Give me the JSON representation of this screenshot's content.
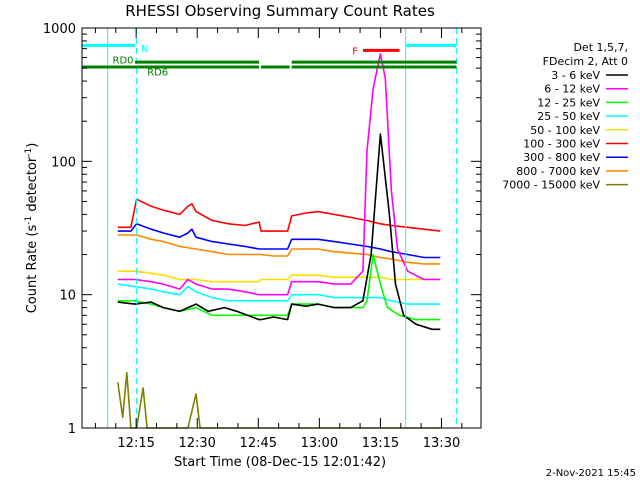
{
  "chart_data": {
    "type": "line",
    "title": "RHESSI Observing Summary Count Rates",
    "ylabel_main": "Count Rate (s",
    "ylabel_sup1": "-1",
    "ylabel_mid": " detector",
    "ylabel_sup2": "-1",
    "ylabel_end": ")",
    "xlabel": "Start Time (08-Dec-15 12:01:42)",
    "footer_date": "2-Nov-2021 15:45",
    "x_unit": "minutes since 12:01:42",
    "xlim": [
      0,
      98
    ],
    "ylim": [
      1,
      1000
    ],
    "yscale": "log",
    "x_ticks": [
      {
        "label": "12:15",
        "value": 13.3
      },
      {
        "label": "12:30",
        "value": 28.3
      },
      {
        "label": "12:45",
        "value": 43.3
      },
      {
        "label": "13:00",
        "value": 58.3
      },
      {
        "label": "13:15",
        "value": 73.3
      },
      {
        "label": "13:30",
        "value": 88.3
      }
    ],
    "y_ticks": [
      {
        "label": "1",
        "value": 1
      },
      {
        "label": "10",
        "value": 10
      },
      {
        "label": "100",
        "value": 100
      },
      {
        "label": "1000",
        "value": 1000
      }
    ],
    "legend": {
      "header": [
        "Det 1,5,7,",
        "FDecim 2, Att 0"
      ],
      "placement": "right"
    },
    "flags": [
      {
        "label": "N",
        "color": "#00ffff",
        "level": 740,
        "segments": [
          [
            0,
            13
          ],
          [
            79.5,
            92
          ]
        ]
      },
      {
        "label": "RD0",
        "color": "#008000",
        "level": 510,
        "segments": [
          [
            0,
            43.5
          ],
          [
            44,
            51
          ],
          [
            51.5,
            92
          ]
        ]
      },
      {
        "label": "RD6",
        "color": "#008000",
        "level": 555,
        "segments": [
          [
            13,
            43.5
          ],
          [
            51.5,
            92
          ]
        ]
      },
      {
        "label": "F",
        "color": "#ff0000",
        "level": 680,
        "segments": [
          [
            69,
            78
          ]
        ]
      }
    ],
    "label_vals": {
      "N": 710,
      "RD0": 580,
      "RD6": 470,
      "F": 680
    },
    "vlines": [
      {
        "x": 6.3,
        "style": "solid",
        "color": "#00ffff"
      },
      {
        "x": 13.4,
        "style": "dashed",
        "color": "#00ffff"
      },
      {
        "x": 79.5,
        "style": "solid",
        "color": "#00ffff"
      },
      {
        "x": 92.0,
        "style": "dashed",
        "color": "#00ffff"
      }
    ],
    "series": [
      {
        "name": "3 - 6 keV",
        "color": "#000000",
        "points": [
          [
            8.8,
            8.8
          ],
          [
            13,
            8.5
          ],
          [
            17,
            8.8
          ],
          [
            20,
            8.0
          ],
          [
            24,
            7.5
          ],
          [
            28,
            8.5
          ],
          [
            31,
            7.5
          ],
          [
            35,
            8.0
          ],
          [
            38,
            7.5
          ],
          [
            43.5,
            6.5
          ],
          [
            44,
            6.5
          ],
          [
            47,
            6.8
          ],
          [
            50.5,
            6.5
          ],
          [
            51.5,
            8.5
          ],
          [
            55,
            8.2
          ],
          [
            58,
            8.5
          ],
          [
            62,
            8.0
          ],
          [
            66,
            8.0
          ],
          [
            69,
            9
          ],
          [
            71,
            20
          ],
          [
            73.3,
            160
          ],
          [
            75.5,
            40
          ],
          [
            77,
            12
          ],
          [
            79,
            7
          ],
          [
            82,
            6
          ],
          [
            86,
            5.5
          ],
          [
            88,
            5.5
          ]
        ]
      },
      {
        "name": "6 - 12 keV",
        "color": "#ff00ff",
        "points": [
          [
            8.8,
            13
          ],
          [
            13,
            13
          ],
          [
            17,
            12.5
          ],
          [
            20,
            12
          ],
          [
            24,
            11
          ],
          [
            26,
            13
          ],
          [
            28,
            12
          ],
          [
            32,
            11
          ],
          [
            36,
            11
          ],
          [
            40,
            10.5
          ],
          [
            43.5,
            10
          ],
          [
            44,
            10
          ],
          [
            47,
            10
          ],
          [
            50.5,
            10
          ],
          [
            51.5,
            12.5
          ],
          [
            55,
            12.5
          ],
          [
            58,
            12.5
          ],
          [
            62,
            12
          ],
          [
            66,
            12
          ],
          [
            69,
            15
          ],
          [
            70,
            120
          ],
          [
            71.5,
            350
          ],
          [
            73.3,
            640
          ],
          [
            74.5,
            420
          ],
          [
            76,
            60
          ],
          [
            77.5,
            22
          ],
          [
            80,
            15
          ],
          [
            84,
            13
          ],
          [
            88,
            13
          ]
        ]
      },
      {
        "name": "12 - 25 keV",
        "color": "#00ff00",
        "points": [
          [
            8.8,
            9
          ],
          [
            13,
            9
          ],
          [
            17,
            8.5
          ],
          [
            20,
            8
          ],
          [
            24,
            7.5
          ],
          [
            28,
            8
          ],
          [
            32,
            7
          ],
          [
            36,
            7
          ],
          [
            40,
            7
          ],
          [
            43.5,
            7
          ],
          [
            44,
            7
          ],
          [
            47,
            7
          ],
          [
            50.5,
            7
          ],
          [
            51.5,
            8.5
          ],
          [
            55,
            8.5
          ],
          [
            58,
            8.5
          ],
          [
            62,
            8
          ],
          [
            66,
            8
          ],
          [
            69,
            8
          ],
          [
            70,
            9
          ],
          [
            71.5,
            20
          ],
          [
            73.3,
            12
          ],
          [
            75,
            8
          ],
          [
            78,
            7
          ],
          [
            82,
            6.5
          ],
          [
            86,
            6.5
          ],
          [
            88,
            6.5
          ]
        ]
      },
      {
        "name": "25 - 50 keV",
        "color": "#00ffff",
        "points": [
          [
            8.8,
            12
          ],
          [
            13,
            11.5
          ],
          [
            17,
            11
          ],
          [
            20,
            10.5
          ],
          [
            24,
            10
          ],
          [
            26,
            11.5
          ],
          [
            28,
            10.5
          ],
          [
            32,
            9.5
          ],
          [
            36,
            9
          ],
          [
            40,
            9
          ],
          [
            43.5,
            9
          ],
          [
            44,
            9
          ],
          [
            47,
            9
          ],
          [
            50.5,
            9
          ],
          [
            51.5,
            10
          ],
          [
            55,
            10
          ],
          [
            58,
            10
          ],
          [
            62,
            9.5
          ],
          [
            66,
            9.5
          ],
          [
            70,
            9.5
          ],
          [
            73.3,
            9.5
          ],
          [
            76,
            9
          ],
          [
            80,
            8.5
          ],
          [
            84,
            8.5
          ],
          [
            88,
            8.5
          ]
        ]
      },
      {
        "name": "50 - 100 keV",
        "color": "#ffdd00",
        "points": [
          [
            8.8,
            15
          ],
          [
            13,
            15
          ],
          [
            17,
            14.5
          ],
          [
            20,
            14
          ],
          [
            24,
            13
          ],
          [
            28,
            13
          ],
          [
            32,
            12.5
          ],
          [
            36,
            12.5
          ],
          [
            40,
            12.5
          ],
          [
            43.5,
            12.5
          ],
          [
            44,
            13
          ],
          [
            47,
            13
          ],
          [
            50.5,
            13
          ],
          [
            51.5,
            14
          ],
          [
            55,
            14
          ],
          [
            58,
            14
          ],
          [
            62,
            13.5
          ],
          [
            66,
            13.5
          ],
          [
            70,
            13.5
          ],
          [
            73.3,
            13.5
          ],
          [
            76,
            13
          ],
          [
            80,
            13
          ],
          [
            84,
            13
          ],
          [
            88,
            13
          ]
        ]
      },
      {
        "name": "100 - 300 keV",
        "color": "#ff0000",
        "points": [
          [
            8.8,
            32
          ],
          [
            12,
            32
          ],
          [
            13.4,
            52
          ],
          [
            17,
            46
          ],
          [
            20,
            43
          ],
          [
            24,
            40
          ],
          [
            26,
            46
          ],
          [
            27,
            48
          ],
          [
            28,
            42
          ],
          [
            32,
            36
          ],
          [
            36,
            34
          ],
          [
            40,
            33
          ],
          [
            43.5,
            35
          ],
          [
            44,
            30
          ],
          [
            47,
            30
          ],
          [
            50.5,
            30
          ],
          [
            51.5,
            39
          ],
          [
            55,
            41
          ],
          [
            58,
            42
          ],
          [
            62,
            40
          ],
          [
            66,
            38
          ],
          [
            70,
            36
          ],
          [
            73.3,
            34
          ],
          [
            76,
            33
          ],
          [
            80,
            32
          ],
          [
            84,
            31
          ],
          [
            88,
            30
          ]
        ]
      },
      {
        "name": "300 - 800 keV",
        "color": "#0000ff",
        "points": [
          [
            8.8,
            30
          ],
          [
            12,
            30
          ],
          [
            13.4,
            34
          ],
          [
            17,
            31
          ],
          [
            20,
            29
          ],
          [
            24,
            27
          ],
          [
            26,
            29
          ],
          [
            27,
            31
          ],
          [
            28,
            27
          ],
          [
            32,
            25
          ],
          [
            36,
            24
          ],
          [
            40,
            23
          ],
          [
            43.5,
            22
          ],
          [
            44,
            22
          ],
          [
            47,
            22
          ],
          [
            50.5,
            22
          ],
          [
            51.5,
            26
          ],
          [
            55,
            26
          ],
          [
            58,
            26
          ],
          [
            62,
            25
          ],
          [
            66,
            24
          ],
          [
            70,
            23
          ],
          [
            73.3,
            22
          ],
          [
            76,
            21
          ],
          [
            80,
            20
          ],
          [
            84,
            19
          ],
          [
            88,
            19
          ]
        ]
      },
      {
        "name": "800 - 7000 keV",
        "color": "#ff8800",
        "points": [
          [
            8.8,
            28
          ],
          [
            12,
            28
          ],
          [
            13.4,
            28
          ],
          [
            17,
            26
          ],
          [
            20,
            25
          ],
          [
            24,
            23
          ],
          [
            28,
            22
          ],
          [
            32,
            21
          ],
          [
            36,
            20
          ],
          [
            40,
            20
          ],
          [
            43.5,
            20
          ],
          [
            44,
            20
          ],
          [
            47,
            19.5
          ],
          [
            50.5,
            19.5
          ],
          [
            51.5,
            22
          ],
          [
            55,
            22
          ],
          [
            58,
            22
          ],
          [
            62,
            21
          ],
          [
            66,
            20.5
          ],
          [
            70,
            20
          ],
          [
            73.3,
            19
          ],
          [
            76,
            18.5
          ],
          [
            80,
            17.5
          ],
          [
            84,
            17
          ],
          [
            88,
            17
          ]
        ]
      },
      {
        "name": "7000 - 15000 keV",
        "color": "#808000",
        "points": [
          [
            8.8,
            2.2
          ],
          [
            10,
            1.2
          ],
          [
            11,
            2.6
          ],
          [
            12,
            1
          ],
          [
            13.4,
            1
          ],
          [
            15,
            2
          ],
          [
            16,
            1
          ],
          [
            18,
            1
          ],
          [
            22,
            1
          ],
          [
            26,
            1
          ],
          [
            28,
            1.8
          ],
          [
            29,
            1
          ],
          [
            32,
            1
          ],
          [
            36,
            1
          ],
          [
            40,
            1
          ],
          [
            43.5,
            1
          ],
          [
            44,
            1
          ],
          [
            47,
            1
          ],
          [
            50.5,
            1
          ],
          [
            51.5,
            1
          ],
          [
            55,
            1
          ],
          [
            58,
            1
          ],
          [
            62,
            1
          ],
          [
            66,
            1
          ],
          [
            70,
            1
          ],
          [
            73.3,
            1
          ],
          [
            76,
            1
          ],
          [
            80,
            1
          ],
          [
            84,
            1
          ],
          [
            88,
            1
          ]
        ]
      }
    ]
  }
}
